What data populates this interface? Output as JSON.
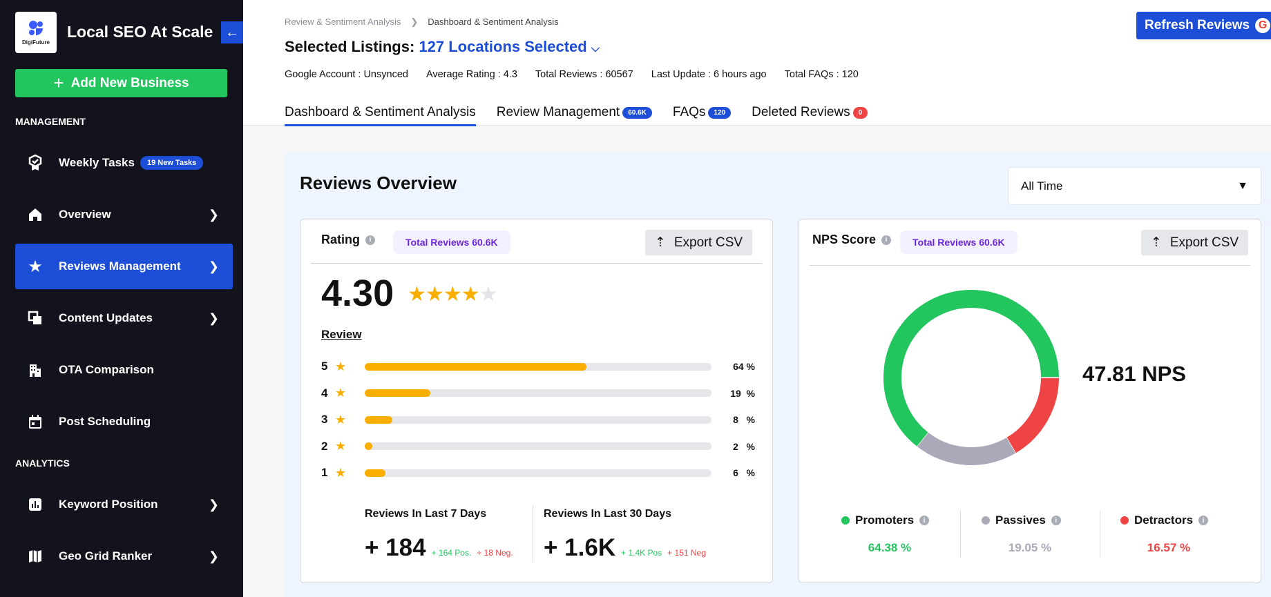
{
  "sidebar": {
    "logo_text": "DigiFuture",
    "app_title": "Local SEO At Scale",
    "add_button": "Add New Business",
    "sections": [
      "MANAGEMENT",
      "ANALYTICS"
    ],
    "items": [
      {
        "label": "Weekly Tasks",
        "icon": "award-check-icon",
        "badge": "19 New Tasks"
      },
      {
        "label": "Overview",
        "icon": "home-icon"
      },
      {
        "label": "Reviews Management",
        "icon": "star-icon",
        "active": true
      },
      {
        "label": "Content Updates",
        "icon": "copy-icon"
      },
      {
        "label": "OTA Comparison",
        "icon": "building-icon"
      },
      {
        "label": "Post Scheduling",
        "icon": "calendar-icon"
      },
      {
        "label": "Keyword Position",
        "icon": "bar-chart-icon"
      },
      {
        "label": "Geo Grid Ranker",
        "icon": "map-icon"
      }
    ]
  },
  "header": {
    "breadcrumb": [
      "Review & Sentiment Analysis",
      "Dashboard & Sentiment Analysis"
    ],
    "listings_label": "Selected Listings:",
    "listings_value": "127 Locations Selected",
    "info": [
      "Google Account : Unsynced",
      "Average Rating : 4.3",
      "Total Reviews : 60567",
      "Last Update : 6 hours ago",
      "Total FAQs : 120"
    ],
    "refresh_label": "Refresh Reviews",
    "tabs": [
      {
        "label": "Dashboard & Sentiment Analysis",
        "active": true
      },
      {
        "label": "Review Management",
        "badge": "60.6K",
        "badge_color": "#1d4ed8"
      },
      {
        "label": "FAQs",
        "badge": "120",
        "badge_color": "#1d4ed8"
      },
      {
        "label": "Deleted Reviews",
        "badge": "0",
        "badge_color": "#ef4444"
      }
    ]
  },
  "overview": {
    "title": "Reviews Overview",
    "period": "All Time",
    "rating_card": {
      "title": "Rating",
      "badge": "Total Reviews 60.6K",
      "export": "Export CSV",
      "average": "4.30",
      "stars_filled": 4,
      "stars_total": 5,
      "review_label": "Review",
      "distribution": [
        {
          "stars": "5",
          "percent": 64,
          "label": "64 %"
        },
        {
          "stars": "4",
          "percent": 19,
          "label": "19  %"
        },
        {
          "stars": "3",
          "percent": 8,
          "label": "8   %"
        },
        {
          "stars": "2",
          "percent": 2,
          "label": "2   %"
        },
        {
          "stars": "1",
          "percent": 6,
          "label": "6   %"
        }
      ],
      "last7": {
        "title": "Reviews In Last 7 Days",
        "value": "+ 184",
        "pos": "+ 164 Pos.",
        "neg": "+ 18 Neg."
      },
      "last30": {
        "title": "Reviews In Last 30 Days",
        "value": "+ 1.6K",
        "pos": "+ 1.4K Pos",
        "neg": "+ 151 Neg"
      }
    },
    "nps_card": {
      "title": "NPS Score",
      "badge": "Total Reviews 60.6K",
      "export": "Export CSV",
      "score": "47.81 NPS",
      "segments": [
        {
          "name": "Promoters",
          "percent": 64.38,
          "label": "64.38 %",
          "color": "#22c55e"
        },
        {
          "name": "Passives",
          "percent": 19.05,
          "label": "19.05 %",
          "color": "#a9a9b9"
        },
        {
          "name": "Detractors",
          "percent": 16.57,
          "label": "16.57 %",
          "color": "#ef4444"
        }
      ]
    }
  }
}
